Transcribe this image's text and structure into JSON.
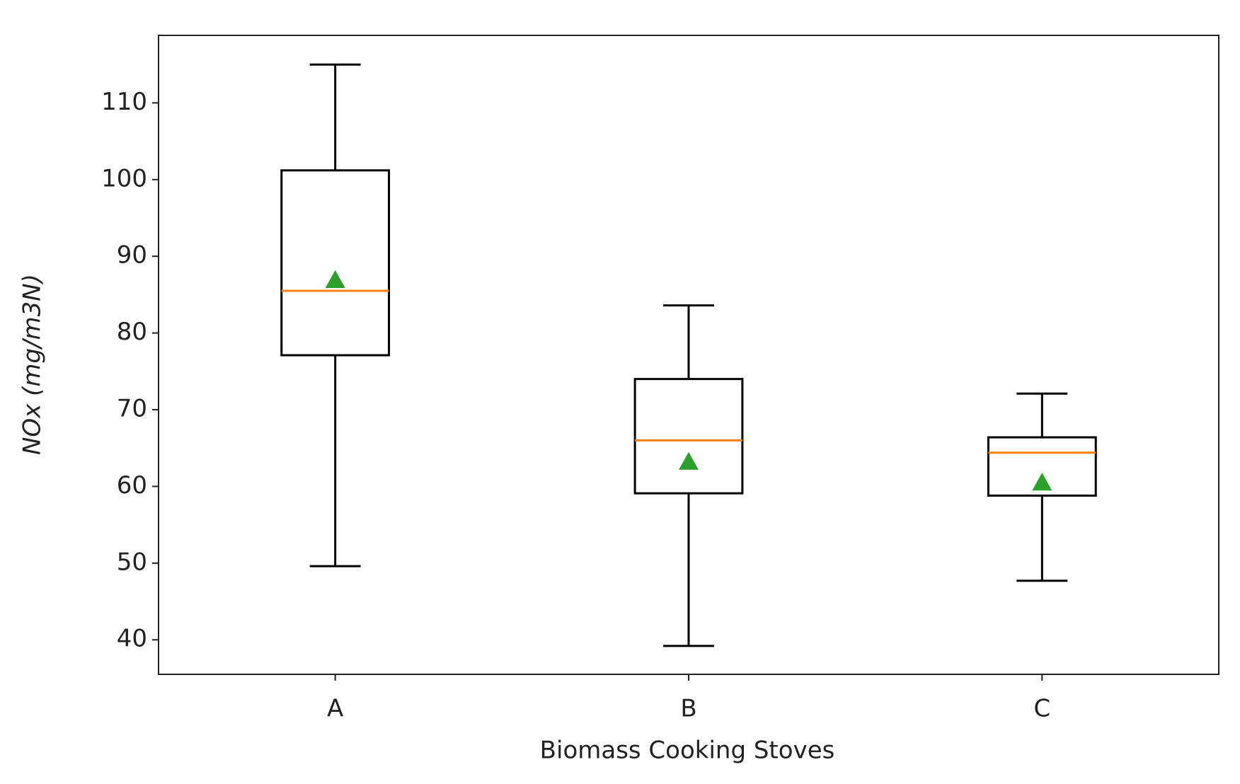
{
  "chart_data": {
    "type": "box",
    "x_label": "Biomass Cooking Stoves",
    "y_label": "NOx  (mg/m3N)",
    "categories": [
      "A",
      "B",
      "C"
    ],
    "boxes": [
      {
        "whisker_low": 49.6,
        "q1": 77.1,
        "median": 85.5,
        "q3": 101.2,
        "whisker_high": 115,
        "mean": 86.9
      },
      {
        "whisker_low": 39.2,
        "q1": 59.1,
        "median": 66.0,
        "q3": 74.0,
        "whisker_high": 83.6,
        "mean": 63.2
      },
      {
        "whisker_low": 47.7,
        "q1": 58.8,
        "median": 64.4,
        "q3": 66.4,
        "whisker_high": 72.1,
        "mean": 60.5
      }
    ],
    "box_color": "#000000",
    "median_color": "#ff7f0e",
    "mean_color": "#2ca02c",
    "ylim": [
      35.5,
      118.8
    ],
    "yticks": [
      40,
      50,
      60,
      70,
      80,
      90,
      100,
      110
    ]
  }
}
